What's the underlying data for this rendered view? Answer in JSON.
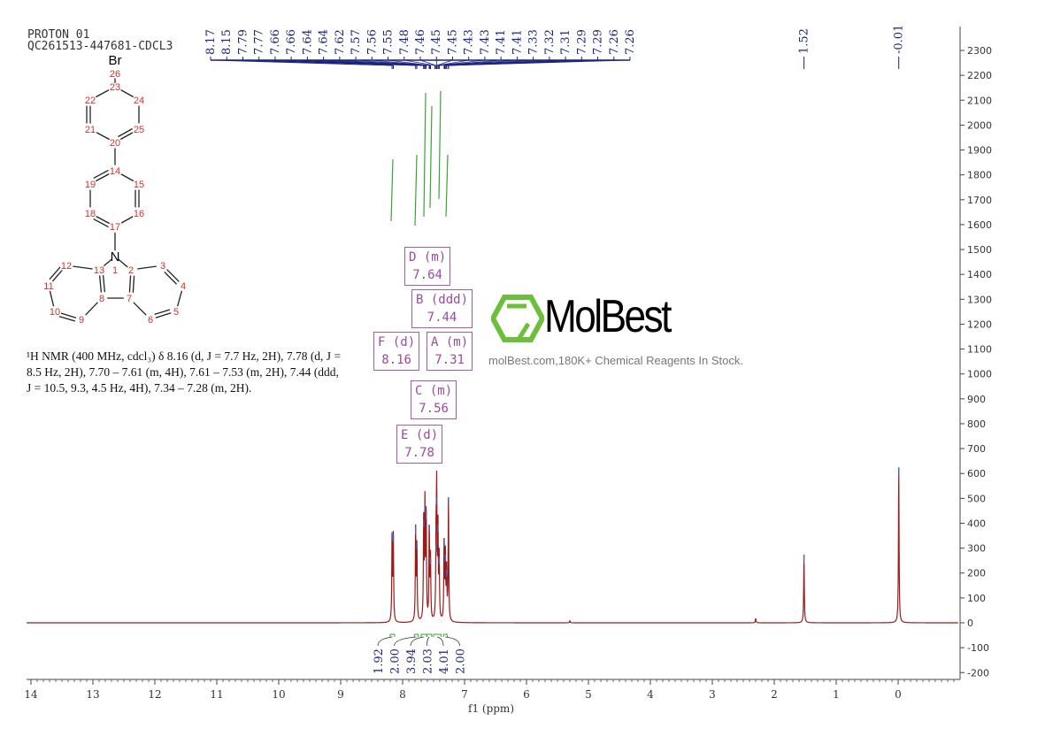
{
  "header": {
    "line1": "PROTON 01",
    "line2": "QC261513-447681-CDCL3"
  },
  "description": "¹H NMR (400 MHz, cdcl₃) δ 8.16 (d, J = 7.7 Hz, 2H), 7.78 (d, J = 8.5 Hz, 2H), 7.70 – 7.61 (m, 4H), 7.61 – 7.53 (m, 2H), 7.44 (ddd, J = 10.5, 9.3, 4.5 Hz, 4H), 7.34 – 7.28 (m, 2H).",
  "structure": {
    "heteroatoms": {
      "Br": "Br",
      "N": "N"
    }
  },
  "multiplets": [
    {
      "label": "D (m)",
      "shift": "7.64"
    },
    {
      "label": "B (ddd)",
      "shift": "7.44"
    },
    {
      "label": "F (d)",
      "shift": "8.16"
    },
    {
      "label": "A (m)",
      "shift": "7.31"
    },
    {
      "label": "C (m)",
      "shift": "7.56"
    },
    {
      "label": "E (d)",
      "shift": "7.78"
    }
  ],
  "watermark": {
    "brand": "MolBest",
    "tagline": "molBest.com,180K+ Chemical Reagents In Stock."
  },
  "chart_data": {
    "type": "line",
    "xlabel": "f1 (ppm)",
    "xlim": [
      14.3,
      -1
    ],
    "ylim": [
      -230,
      2400
    ],
    "x_ticks": [
      "14",
      "13",
      "12",
      "11",
      "10",
      "9",
      "8",
      "7",
      "6",
      "5",
      "4",
      "3",
      "2",
      "1",
      "0"
    ],
    "y_ticks": [
      "2300",
      "2200",
      "2100",
      "2000",
      "1900",
      "1800",
      "1700",
      "1600",
      "1500",
      "1400",
      "1300",
      "1200",
      "1100",
      "1000",
      "900",
      "800",
      "700",
      "600",
      "500",
      "400",
      "300",
      "200",
      "100",
      "0",
      "-100",
      "-200"
    ],
    "peak_labels": [
      "8.17",
      "8.15",
      "7.79",
      "7.77",
      "7.66",
      "7.66",
      "7.64",
      "7.64",
      "7.62",
      "7.57",
      "7.56",
      "7.55",
      "7.48",
      "7.46",
      "7.45",
      "7.45",
      "7.43",
      "7.43",
      "7.41",
      "7.41",
      "7.33",
      "7.32",
      "7.31",
      "7.29",
      "7.29",
      "7.26",
      "7.26"
    ],
    "isolated_peak_labels": [
      "1.52",
      "-0.01"
    ],
    "peaks": [
      {
        "ppm": 8.17,
        "intensity": 350
      },
      {
        "ppm": 8.15,
        "intensity": 340
      },
      {
        "ppm": 7.79,
        "intensity": 370
      },
      {
        "ppm": 7.77,
        "intensity": 310
      },
      {
        "ppm": 7.66,
        "intensity": 400
      },
      {
        "ppm": 7.64,
        "intensity": 460
      },
      {
        "ppm": 7.62,
        "intensity": 430
      },
      {
        "ppm": 7.57,
        "intensity": 380
      },
      {
        "ppm": 7.55,
        "intensity": 250
      },
      {
        "ppm": 7.46,
        "intensity": 300
      },
      {
        "ppm": 7.45,
        "intensity": 490
      },
      {
        "ppm": 7.43,
        "intensity": 380
      },
      {
        "ppm": 7.41,
        "intensity": 250
      },
      {
        "ppm": 7.33,
        "intensity": 320
      },
      {
        "ppm": 7.31,
        "intensity": 260
      },
      {
        "ppm": 7.29,
        "intensity": 200
      },
      {
        "ppm": 7.26,
        "intensity": 490
      },
      {
        "ppm": 5.3,
        "intensity": 8
      },
      {
        "ppm": 2.3,
        "intensity": 18
      },
      {
        "ppm": 1.52,
        "intensity": 260
      },
      {
        "ppm": -0.01,
        "intensity": 610
      }
    ],
    "integrals": [
      {
        "from": 8.2,
        "to": 8.13,
        "value": "1.92"
      },
      {
        "from": 7.81,
        "to": 7.75,
        "value": "2.00"
      },
      {
        "from": 7.7,
        "to": 7.61,
        "value": "3.94"
      },
      {
        "from": 7.61,
        "to": 7.53,
        "value": "2.03"
      },
      {
        "from": 7.5,
        "to": 7.38,
        "value": "4.01"
      },
      {
        "from": 7.34,
        "to": 7.28,
        "value": "2.00"
      }
    ],
    "colors": {
      "spectrum": "#9b1b1b",
      "labels": "#1a237e",
      "integral": "#3aa335",
      "box": "#a060a8"
    }
  }
}
